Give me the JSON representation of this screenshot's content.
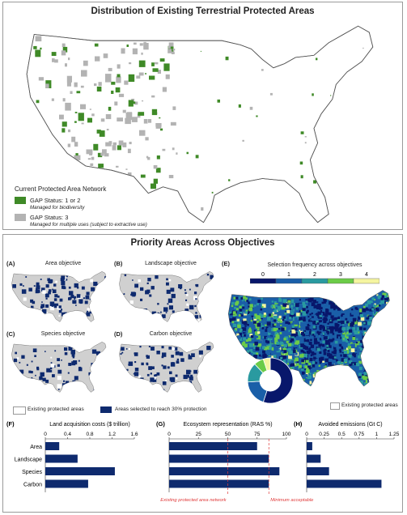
{
  "top": {
    "title": "Distribution of Existing Terrestrial Protected Areas",
    "legend": {
      "heading": "Current Protected Area Network",
      "items": [
        {
          "label": "GAP Status: 1 or 2",
          "desc": "Managed for biodiversity",
          "color": "#3f8a27"
        },
        {
          "label": "GAP Status: 3",
          "desc": "Managed for multiple uses (subject to extractive use)",
          "color": "#b3b3b3"
        }
      ]
    }
  },
  "bottom": {
    "title": "Priority Areas Across Objectives",
    "panels": {
      "a": {
        "tag": "(A)",
        "title": "Area objective"
      },
      "b": {
        "tag": "(B)",
        "title": "Landscape objective"
      },
      "c": {
        "tag": "(C)",
        "title": "Species objective"
      },
      "d": {
        "tag": "(D)",
        "title": "Carbon objective"
      },
      "e": {
        "tag": "(E)",
        "title": "Selection frequency across objectives"
      }
    },
    "legend_existing": "Existing protected areas",
    "legend_selected": "Areas selected to reach 30% protection",
    "legend_existing_e": "Existing protected areas",
    "freq_scale": {
      "labels": [
        "0",
        "1",
        "2",
        "3",
        "4"
      ],
      "colors": [
        "#08176b",
        "#1a5fa8",
        "#2a9aa0",
        "#6ccc48",
        "#f5f5a0"
      ]
    },
    "donut_fractions": [
      0.55,
      0.19,
      0.14,
      0.07,
      0.05
    ],
    "selected_color": "#0e2a6e",
    "existing_color": "#d0d0d0"
  },
  "chart_data": [
    {
      "type": "bar",
      "tag": "(F)",
      "title": "Land acquisition costs ($ trillion)",
      "categories": [
        "Area",
        "Landscape",
        "Species",
        "Carbon"
      ],
      "values": [
        0.25,
        0.58,
        1.25,
        0.77
      ],
      "xlim": [
        0,
        1.6
      ],
      "ticks": [
        "0",
        "0.4",
        "0.8",
        "1.2",
        "1.6"
      ]
    },
    {
      "type": "bar",
      "tag": "(G)",
      "title": "Ecosystem representation (RAS %)",
      "categories": [
        "Area",
        "Landscape",
        "Species",
        "Carbon"
      ],
      "values": [
        75,
        85,
        94,
        85
      ],
      "xlim": [
        0,
        100
      ],
      "ticks": [
        "0",
        "25",
        "50",
        "75",
        "100"
      ],
      "reference_lines": [
        {
          "value": 50,
          "label": "Existing protected area network"
        },
        {
          "value": 85,
          "label": "Minimum acceptable"
        }
      ]
    },
    {
      "type": "bar",
      "tag": "(H)",
      "title": "Avoided emissions (Gt C)",
      "categories": [
        "Area",
        "Landscape",
        "Species",
        "Carbon"
      ],
      "values": [
        0.08,
        0.2,
        0.32,
        1.07
      ],
      "xlim": [
        0,
        1.25
      ],
      "ticks": [
        "0",
        "0.25",
        "0.5",
        "0.75",
        "1",
        "1.25"
      ]
    }
  ]
}
